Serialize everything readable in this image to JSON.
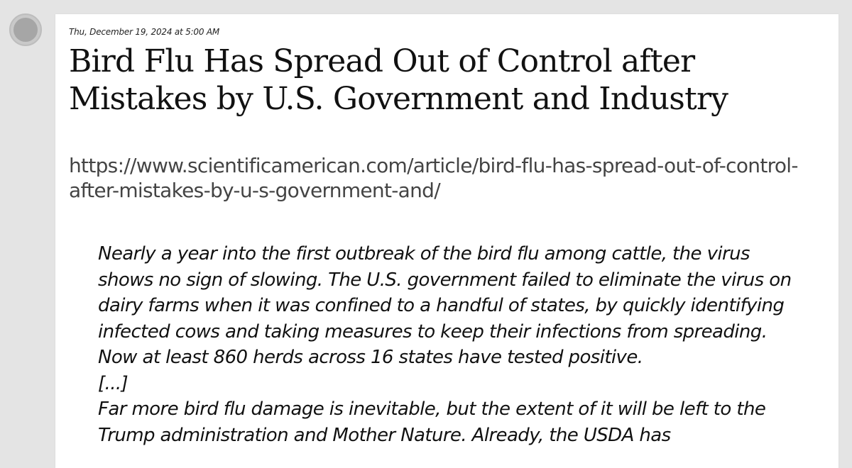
{
  "post": {
    "timestamp": "Thu, December 19, 2024 at 5:00 AM",
    "title": "Bird Flu Has Spread Out of Control after Mistakes by U.S. Government and Industry",
    "url": "https://www.scientificamerican.com/article/bird-flu-has-spread-out-of-control-after-mistakes-by-u-s-government-and/",
    "quote": {
      "paragraph_1": "Nearly a year into the first outbreak of the bird flu among cattle, the virus shows no sign of slowing. The U.S. government failed to eliminate the virus on dairy farms when it was confined to a handful of states, by quickly identifying infected cows and taking measures to keep their infections from spreading. Now at least 860 herds across 16 states have tested positive.",
      "ellipsis": "[...]",
      "paragraph_2": "Far more bird flu damage is inevitable, but the extent of it will be left to the Trump administration and Mother Nature. Already, the USDA has"
    }
  }
}
